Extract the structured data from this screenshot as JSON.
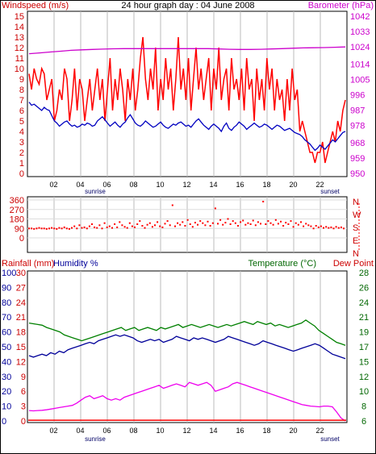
{
  "chart_data": [
    {
      "type": "line",
      "title": "24 hour graph day : 04 June 2008",
      "left_axis_label": "Windspeed (m/s)",
      "right_axis_label": "Barometer (hPa)",
      "left_ticks": [
        "0",
        "1",
        "2",
        "3",
        "4",
        "5",
        "6",
        "7",
        "8",
        "9",
        "10",
        "11",
        "12",
        "13",
        "14",
        "15"
      ],
      "right_ticks": [
        "950",
        "959",
        "968",
        "978",
        "987",
        "996",
        "1005",
        "1014",
        "1024",
        "1033",
        "1042"
      ],
      "x_ticks": [
        "02",
        "04",
        "06",
        "08",
        "10",
        "12",
        "14",
        "16",
        "18",
        "20",
        "22"
      ],
      "sunrise_label": "sunrise",
      "sunset_label": "sunset",
      "grid": true,
      "ylim_left": [
        0,
        15
      ],
      "ylim_right": [
        950,
        1042
      ],
      "series": [
        {
          "axis": "left",
          "color": "#ff0000",
          "values": [
            9.5,
            8,
            10,
            9,
            8.5,
            10,
            9.5,
            7,
            8,
            9,
            5,
            6,
            8,
            7,
            10,
            9,
            5,
            7,
            10,
            6,
            9,
            8,
            5,
            7,
            9,
            6,
            8,
            10,
            7,
            9,
            5,
            8,
            11,
            6,
            9,
            7,
            10,
            8,
            5,
            9,
            7,
            10,
            6,
            8,
            11,
            13,
            9,
            7,
            10,
            8,
            12,
            6,
            9,
            7,
            11,
            8,
            10,
            6,
            9,
            13,
            8,
            10,
            7,
            11,
            6,
            9,
            12,
            8,
            10,
            7,
            9,
            11,
            6,
            10,
            8,
            12,
            7,
            9,
            10,
            6,
            11,
            8,
            9,
            7,
            10,
            6,
            11,
            8,
            9,
            5,
            10,
            7,
            9,
            6,
            11,
            8,
            10,
            6,
            9,
            7,
            8,
            5,
            9,
            6,
            10,
            7,
            8,
            4,
            5,
            4,
            3,
            2,
            2,
            1,
            2,
            2,
            3,
            1,
            2,
            3,
            4,
            3,
            5,
            4,
            6,
            7
          ]
        },
        {
          "axis": "left",
          "color": "#0000c0",
          "values": [
            6.8,
            6.5,
            6.6,
            6.4,
            6.2,
            6,
            6.3,
            6.1,
            6,
            5.5,
            5,
            4.8,
            4.5,
            4.7,
            4.9,
            5,
            4.7,
            4.5,
            4.6,
            4.4,
            4.5,
            4.7,
            4.6,
            4.8,
            4.7,
            4.5,
            4.6,
            5,
            5.2,
            5.4,
            5.1,
            4.8,
            4.5,
            4.7,
            4.9,
            4.6,
            4.4,
            4.7,
            4.9,
            5.3,
            5.6,
            5.2,
            4.8,
            4.6,
            4.5,
            4.7,
            5,
            4.8,
            4.6,
            4.4,
            4.5,
            4.7,
            4.9,
            4.6,
            4.4,
            4.3,
            4.5,
            4.7,
            4.6,
            4.8,
            4.9,
            4.7,
            4.5,
            4.6,
            4.4,
            4.7,
            5,
            5.2,
            4.9,
            4.6,
            4.4,
            4.2,
            4.5,
            4.7,
            4.5,
            4.3,
            4,
            4.5,
            4.8,
            4.3,
            4.1,
            4.4,
            4.6,
            4.9,
            4.7,
            4.5,
            4.2,
            4.4,
            4.6,
            4.8,
            4.6,
            4.4,
            4.5,
            4.7,
            4.6,
            4.4,
            4.2,
            4.4,
            4.6,
            4.5,
            4.3,
            4.1,
            4.2,
            4.3,
            4.1,
            3.9,
            3.8,
            3.7,
            3.5,
            3.2,
            3,
            2.8,
            2.5,
            2.2,
            2.4,
            2.7,
            2.5,
            2.3,
            2.6,
            2.9,
            3.2,
            3,
            3.3,
            3.6,
            3.9,
            4
          ]
        },
        {
          "axis": "right",
          "color": "#cc00cc",
          "values": [
            1020,
            1020.5,
            1021,
            1021.5,
            1022,
            1022.3,
            1022.5,
            1022.7,
            1022.9,
            1023,
            1023,
            1023,
            1023,
            1023,
            1023,
            1023,
            1023,
            1023,
            1022.8,
            1022.6,
            1022.5,
            1022.5,
            1022.6,
            1022.8,
            1023,
            1023.2,
            1023.4,
            1023.5,
            1023.6,
            1023.8,
            1024
          ]
        }
      ]
    },
    {
      "type": "scatter",
      "left_ticks": [
        "0",
        "90",
        "180",
        "270",
        "360"
      ],
      "right_ticks": [
        "N",
        "W",
        "S",
        "E",
        "N"
      ],
      "x_ticks": [
        "02",
        "04",
        "06",
        "08",
        "10",
        "12",
        "14",
        "16",
        "18",
        "20",
        "22"
      ],
      "ylim": [
        0,
        360
      ],
      "grid": true,
      "color": "#ff0000",
      "values": [
        90,
        90,
        85,
        90,
        95,
        90,
        90,
        85,
        90,
        95,
        90,
        85,
        95,
        90,
        100,
        90,
        85,
        95,
        110,
        90,
        120,
        95,
        100,
        90,
        110,
        130,
        100,
        95,
        120,
        90,
        140,
        100,
        110,
        95,
        130,
        100,
        150,
        120,
        105,
        95,
        140,
        110,
        100,
        130,
        160,
        115,
        95,
        125,
        140,
        105,
        120,
        150,
        110,
        100,
        135,
        160,
        120,
        310,
        110,
        140,
        125,
        150,
        115,
        170,
        130,
        105,
        145,
        125,
        160,
        140,
        120,
        155,
        115,
        140,
        280,
        135,
        170,
        125,
        145,
        180,
        130,
        160,
        140,
        115,
        150,
        165,
        125,
        140,
        130,
        165,
        120,
        150,
        135,
        345,
        130,
        160,
        140,
        125,
        170,
        135,
        155,
        115,
        145,
        130,
        160,
        105,
        140,
        125,
        150,
        110,
        135,
        120,
        110,
        90,
        115,
        100,
        110,
        95,
        105,
        95,
        100,
        90,
        105,
        95,
        100,
        90
      ]
    },
    {
      "type": "line",
      "rainfall_label": "Rainfall (mm)",
      "humidity_label": "Humidity %",
      "temperature_label": "Temperature (°C)",
      "dewpoint_label": "Dew Point",
      "rainfall_ticks": [
        "0",
        "3",
        "6",
        "9",
        "12",
        "15",
        "18",
        "21",
        "24",
        "27",
        "30"
      ],
      "humidity_ticks": [
        "0",
        "10",
        "20",
        "30",
        "40",
        "50",
        "60",
        "70",
        "80",
        "90",
        "100"
      ],
      "temperature_ticks": [
        "6",
        "8",
        "10",
        "12",
        "15",
        "17",
        "19",
        "21",
        "24",
        "26",
        "28"
      ],
      "dewpoint_ticks": [
        "6",
        "8",
        "10",
        "12",
        "15",
        "17",
        "19",
        "21",
        "24",
        "26",
        "28"
      ],
      "x_ticks": [
        "02",
        "04",
        "06",
        "08",
        "10",
        "12",
        "14",
        "16",
        "18",
        "20",
        "22"
      ],
      "sunrise_label": "sunrise",
      "sunset_label": "sunset",
      "grid": true,
      "ylim_left": [
        0,
        100
      ],
      "series": [
        {
          "axis": "left",
          "color": "#008000",
          "values": [
            66,
            65.5,
            65,
            64.5,
            63,
            62,
            61,
            60,
            58,
            57,
            56,
            55,
            54,
            55,
            56,
            57,
            58,
            59,
            60,
            61,
            62,
            63,
            61,
            62,
            63,
            61,
            62,
            63,
            62,
            61,
            63,
            62,
            63,
            64,
            65,
            63,
            64,
            65,
            64,
            63,
            64,
            65,
            64,
            63,
            64,
            65,
            64,
            65,
            66,
            67,
            66,
            65,
            67,
            66,
            65,
            66,
            64,
            65,
            64,
            63,
            64,
            65,
            66,
            68,
            66,
            64,
            61,
            59,
            57,
            55,
            53,
            52,
            51
          ]
        },
        {
          "axis": "left",
          "color": "#000099",
          "values": [
            44,
            43,
            44,
            45,
            44,
            46,
            45,
            47,
            46,
            48,
            49,
            50,
            51,
            52,
            53,
            52,
            54,
            55,
            56,
            57,
            58,
            57,
            58,
            57,
            56,
            54,
            53,
            54,
            55,
            54,
            55,
            53,
            54,
            55,
            57,
            56,
            55,
            54,
            56,
            55,
            56,
            55,
            54,
            53,
            54,
            55,
            57,
            56,
            55,
            54,
            53,
            52,
            51,
            52,
            54,
            53,
            52,
            51,
            50,
            49,
            48,
            47,
            48,
            49,
            50,
            51,
            52,
            51,
            49,
            47,
            45,
            44,
            43,
            42
          ]
        },
        {
          "axis": "left",
          "color": "#ee00ee",
          "values": [
            7,
            6.8,
            7,
            7.2,
            7.5,
            8,
            8.5,
            9,
            9.5,
            10,
            10.5,
            12,
            14,
            16,
            17,
            15,
            16,
            17,
            15,
            14,
            15,
            14,
            16,
            17,
            18,
            19,
            20,
            21,
            22,
            23,
            24,
            22,
            23,
            24,
            25,
            24,
            23,
            26,
            25,
            24,
            25,
            26,
            24,
            20,
            21,
            22,
            23,
            25,
            26,
            25,
            24,
            23,
            22,
            21,
            20,
            19,
            18,
            17,
            16,
            15,
            14,
            13,
            12,
            11,
            10.5,
            10,
            9.8,
            9.5,
            10,
            10,
            9.5,
            6,
            2,
            0
          ]
        },
        {
          "axis": "left",
          "color": "#ff0000",
          "values": [
            0.5,
            0.5
          ]
        }
      ]
    }
  ]
}
